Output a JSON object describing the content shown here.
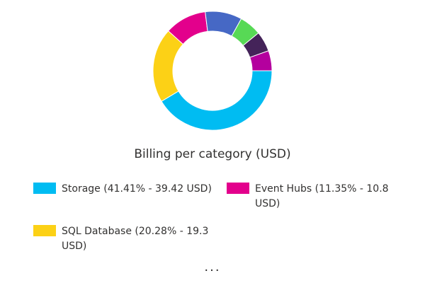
{
  "chart_data": {
    "type": "pie",
    "variant": "donut",
    "title": "Billing per category (USD)",
    "slices": [
      {
        "name": "Storage",
        "percent": 41.41,
        "value": 39.42,
        "color": "#00BCF2"
      },
      {
        "name": "SQL Database",
        "percent": 20.28,
        "value": 19.3,
        "color": "#FCD116"
      },
      {
        "name": "Event Hubs",
        "percent": 11.35,
        "value": 10.8,
        "color": "#E3008C"
      },
      {
        "name": "",
        "percent": 10.0,
        "value": null,
        "color": "#4668C5"
      },
      {
        "name": "",
        "percent": 6.0,
        "value": null,
        "color": "#57D955"
      },
      {
        "name": "",
        "percent": 5.5,
        "value": null,
        "color": "#442359"
      },
      {
        "name": "",
        "percent": 5.46,
        "value": null,
        "color": "#B4009E"
      }
    ],
    "legend": [
      {
        "label": "Storage (41.41% - 39.42 USD)",
        "color": "#00BCF2"
      },
      {
        "label": "Event Hubs (11.35% - 10.8 USD)",
        "color": "#E3008C"
      },
      {
        "label": "SQL Database (20.28% - 19.3 USD)",
        "color": "#FCD116"
      }
    ],
    "more_label": "..."
  }
}
